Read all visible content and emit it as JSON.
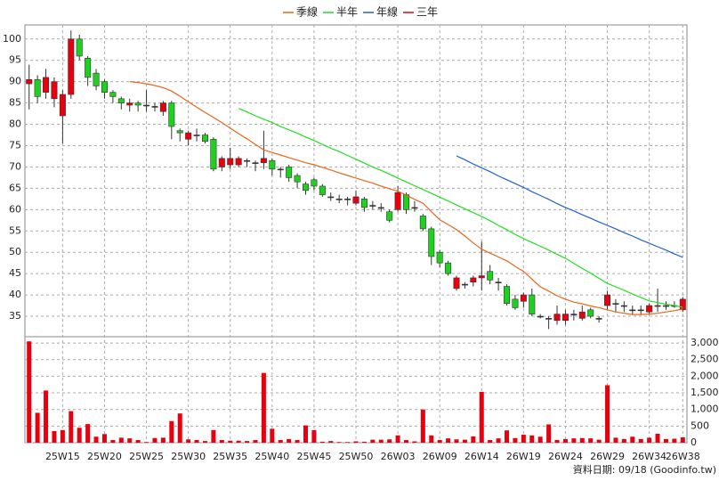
{
  "chart_data": {
    "type": "candlestick",
    "categories": [
      null,
      null,
      null,
      null,
      "25W15",
      null,
      null,
      null,
      null,
      "25W20",
      null,
      null,
      null,
      null,
      "25W25",
      null,
      null,
      null,
      null,
      "25W30",
      null,
      null,
      null,
      null,
      "25W35",
      null,
      null,
      null,
      null,
      "25W40",
      null,
      null,
      null,
      null,
      "25W45",
      null,
      null,
      null,
      null,
      "25W50",
      null,
      null,
      null,
      null,
      "26W03",
      null,
      null,
      null,
      null,
      "26W09",
      null,
      null,
      null,
      null,
      "26W14",
      null,
      null,
      null,
      null,
      "26W19",
      null,
      null,
      null,
      null,
      "26W24",
      null,
      null,
      null,
      null,
      "26W29",
      null,
      null,
      null,
      null,
      "26W34",
      null,
      null,
      null,
      "26W38"
    ],
    "open": [
      89.5,
      90.5,
      87.5,
      86,
      82,
      87,
      100,
      95.5,
      92,
      90,
      87.5,
      86,
      84.5,
      85,
      84.5,
      84.2,
      83,
      85,
      78.5,
      76.5,
      77.5,
      77.5,
      76.5,
      70,
      70.5,
      70.5,
      71.5,
      71,
      71,
      71.5,
      69.5,
      70,
      68,
      66,
      67,
      65.5,
      63,
      62.5,
      62.5,
      61.5,
      62.5,
      61,
      60.5,
      59.5,
      60,
      63.5,
      60.5,
      58.5,
      55.5,
      50,
      47.5,
      41.5,
      42.5,
      43,
      44,
      45.5,
      43,
      42,
      39,
      38.5,
      40,
      35,
      34.5,
      34,
      34,
      35.5,
      34.5,
      36.5,
      34.5,
      37.5,
      38,
      37.5,
      36.5,
      36.5,
      36,
      37.5,
      37.5,
      37.5,
      36.5
    ],
    "high": [
      94,
      91.5,
      93,
      91,
      88,
      102,
      101,
      96,
      93,
      90.5,
      88,
      86.5,
      86,
      85.5,
      88,
      85,
      85.5,
      85.5,
      79,
      78.5,
      79,
      78,
      77,
      72.5,
      74.5,
      72.5,
      72,
      71.5,
      78.5,
      72,
      70,
      70.5,
      68.5,
      66.5,
      67.5,
      66,
      64,
      63.5,
      63,
      64.5,
      63,
      62,
      61.5,
      60,
      65.5,
      64,
      62,
      59,
      56,
      50.5,
      48,
      44.5,
      43,
      44.5,
      52.5,
      47,
      44,
      42.5,
      40,
      40.5,
      41.5,
      35.5,
      35,
      37.5,
      36.5,
      36.5,
      37.5,
      37,
      35,
      41,
      39,
      38.5,
      37.5,
      37.5,
      38,
      41.5,
      38.5,
      38.5,
      39.5
    ],
    "low": [
      83.5,
      85,
      86,
      84,
      75.5,
      86,
      95,
      89,
      88,
      86,
      85,
      83.5,
      83,
      83,
      83,
      83,
      82,
      76.5,
      76,
      75,
      76,
      75.5,
      69,
      69,
      69.5,
      70,
      70,
      69,
      69.5,
      68,
      67.5,
      66.5,
      65,
      63.5,
      64.5,
      63,
      62,
      61.5,
      61,
      61,
      59.5,
      60,
      59.5,
      57,
      59.5,
      59,
      59.5,
      55,
      47,
      46.5,
      44.5,
      41,
      41.5,
      42,
      41,
      42.5,
      41,
      37.5,
      36.5,
      37,
      35,
      34.5,
      32,
      33,
      33,
      34,
      34,
      34.5,
      33.5,
      36.5,
      36,
      36,
      35.5,
      35.5,
      35.5,
      36,
      36.5,
      37,
      36
    ],
    "close": [
      90.5,
      86.5,
      91,
      90,
      87,
      100,
      96,
      91,
      89,
      87.5,
      86.5,
      85,
      85,
      84.5,
      84.5,
      84.2,
      85,
      79.5,
      78,
      78,
      77.5,
      76,
      69.5,
      72,
      72,
      72,
      71.5,
      71,
      72,
      69.5,
      69.5,
      67.5,
      66.5,
      64.5,
      65.5,
      63.5,
      63,
      62.5,
      62.5,
      63,
      60.5,
      61,
      60.5,
      57.5,
      64,
      60,
      60.5,
      55.5,
      49,
      47.5,
      45,
      44,
      42.5,
      44,
      44.5,
      43.5,
      43,
      38,
      37,
      40,
      35.5,
      35,
      34.5,
      35.5,
      35.5,
      35.5,
      36,
      35,
      34.5,
      40,
      38,
      37.5,
      36.5,
      36.5,
      37.5,
      37.5,
      37.5,
      37.5,
      39
    ],
    "up_color": "#e8000f",
    "down_color": "#1fd11f",
    "ylim": [
      30.2,
      103.3
    ],
    "yticks": [
      35,
      40,
      45,
      50,
      55,
      60,
      65,
      70,
      75,
      80,
      85,
      90,
      95,
      100
    ],
    "grid": true,
    "legend": "top",
    "series": [
      {
        "name": "季線",
        "color": "#e8661a",
        "values": [
          null,
          null,
          null,
          null,
          null,
          null,
          null,
          null,
          null,
          null,
          null,
          null,
          90,
          89.8,
          89.5,
          89.1,
          88.6,
          87.8,
          86.6,
          85.3,
          84.0,
          82.8,
          81.6,
          80.4,
          79.1,
          77.8,
          76.6,
          75.3,
          74.0,
          73.4,
          72.8,
          72.2,
          71.6,
          71.0,
          70.5,
          69.9,
          69.3,
          68.6,
          68.0,
          67.4,
          66.8,
          66.2,
          65.5,
          64.9,
          64.3,
          63.4,
          62.4,
          61.5,
          59.5,
          57.6,
          56.5,
          55.3,
          53.8,
          52.2,
          50.7,
          49.8,
          48.9,
          48.0,
          46.7,
          45.5,
          43.7,
          41.9,
          40.9,
          39.8,
          39.0,
          38.3,
          37.9,
          37.4,
          37.0,
          36.5,
          36.0,
          35.7,
          35.4,
          35.4,
          35.5,
          35.7,
          36.0,
          36.3,
          36.7
        ]
      },
      {
        "name": "半年",
        "color": "#22dd22",
        "values": [
          null,
          null,
          null,
          null,
          null,
          null,
          null,
          null,
          null,
          null,
          null,
          null,
          null,
          null,
          null,
          null,
          null,
          null,
          null,
          null,
          null,
          null,
          null,
          null,
          null,
          83.7,
          82.9,
          82.0,
          81.2,
          80.4,
          79.5,
          78.7,
          77.9,
          77.0,
          76.2,
          75.3,
          74.4,
          73.6,
          72.7,
          71.8,
          70.9,
          70.0,
          69.2,
          68.3,
          67.4,
          66.5,
          65.6,
          64.7,
          63.8,
          62.9,
          62.0,
          61.1,
          60.2,
          59.3,
          58.4,
          57.4,
          56.3,
          55.3,
          54.2,
          53.2,
          52.3,
          51.4,
          50.5,
          49.5,
          48.6,
          47.4,
          46.2,
          45.1,
          43.9,
          42.7,
          41.9,
          41.1,
          40.2,
          39.4,
          38.6,
          38.2,
          37.8,
          37.5,
          37.1
        ]
      },
      {
        "name": "年線",
        "color": "#2060d0",
        "values": [
          null,
          null,
          null,
          null,
          null,
          null,
          null,
          null,
          null,
          null,
          null,
          null,
          null,
          null,
          null,
          null,
          null,
          null,
          null,
          null,
          null,
          null,
          null,
          null,
          null,
          null,
          null,
          null,
          null,
          null,
          null,
          null,
          null,
          null,
          null,
          null,
          null,
          null,
          null,
          null,
          null,
          null,
          null,
          null,
          null,
          null,
          null,
          null,
          null,
          null,
          null,
          72.6,
          71.7,
          70.7,
          69.8,
          68.9,
          67.9,
          67.0,
          66.1,
          65.2,
          64.2,
          63.3,
          62.4,
          61.4,
          60.5,
          59.7,
          58.8,
          58.0,
          57.1,
          56.3,
          55.5,
          54.6,
          53.8,
          52.9,
          52.1,
          51.3,
          50.5,
          49.6,
          48.8
        ]
      },
      {
        "name": "三年",
        "color": "#e8000f",
        "values": [
          null,
          null,
          null,
          null,
          null,
          null,
          null,
          null,
          null,
          null,
          null,
          null,
          null,
          null,
          null,
          null,
          null,
          null,
          null,
          null,
          null,
          null,
          null,
          null,
          null,
          null,
          null,
          null,
          null,
          null,
          null,
          null,
          null,
          null,
          null,
          null,
          null,
          null,
          null,
          null,
          null,
          null,
          null,
          null,
          null,
          null,
          null,
          null,
          null,
          null,
          null,
          null,
          null,
          null,
          null,
          null,
          null,
          null,
          null,
          null,
          null,
          null,
          null,
          null,
          null,
          null,
          null,
          null,
          null,
          null,
          null,
          null,
          null,
          null,
          null,
          null,
          null,
          null,
          null
        ]
      }
    ],
    "volume": {
      "type": "bar",
      "color": "#e8000f",
      "values": [
        3050,
        900,
        1570,
        350,
        380,
        950,
        450,
        560,
        180,
        260,
        80,
        150,
        130,
        80,
        20,
        140,
        150,
        650,
        880,
        100,
        80,
        50,
        380,
        80,
        60,
        60,
        50,
        80,
        2100,
        420,
        80,
        110,
        80,
        520,
        380,
        30,
        50,
        20,
        20,
        40,
        30,
        90,
        90,
        100,
        220,
        80,
        40,
        1000,
        220,
        80,
        130,
        100,
        90,
        190,
        1530,
        80,
        130,
        370,
        140,
        240,
        220,
        180,
        550,
        80,
        110,
        130,
        140,
        130,
        90,
        1730,
        150,
        110,
        180,
        110,
        150,
        270,
        110,
        120,
        160
      ],
      "ylim": [
        0,
        3190
      ],
      "yticks": [
        0,
        500,
        {
          "value": 1000,
          "label": "1,000"
        },
        {
          "value": 1500,
          "label": "1,500"
        },
        {
          "value": 2000,
          "label": "2,000"
        },
        {
          "value": 2500,
          "label": "2,500"
        },
        {
          "value": 3000,
          "label": "3,000"
        }
      ]
    }
  },
  "footer": "資料日期: 09/18 (Goodinfo.tw)"
}
